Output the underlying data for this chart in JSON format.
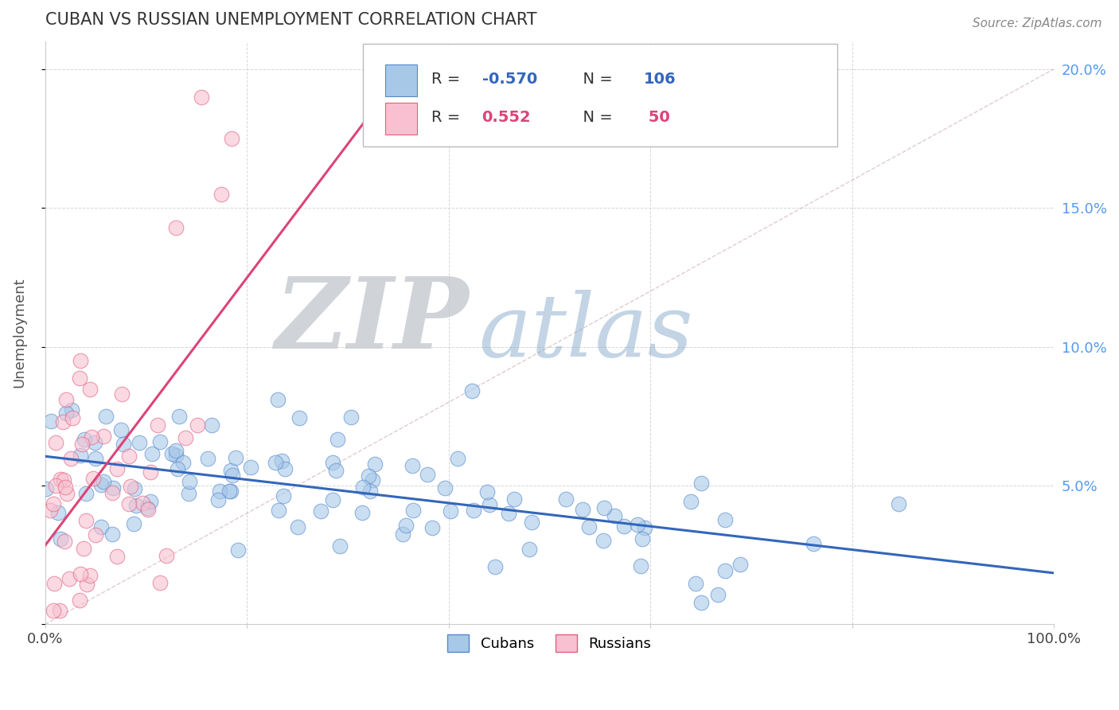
{
  "title": "CUBAN VS RUSSIAN UNEMPLOYMENT CORRELATION CHART",
  "source_text": "Source: ZipAtlas.com",
  "ylabel": "Unemployment",
  "xlim": [
    0,
    1
  ],
  "ylim": [
    0,
    0.21
  ],
  "xticks": [
    0.0,
    0.2,
    0.4,
    0.6,
    0.8,
    1.0
  ],
  "xticklabels": [
    "0.0%",
    "",
    "",
    "",
    "",
    "100.0%"
  ],
  "yticks": [
    0.0,
    0.05,
    0.1,
    0.15,
    0.2
  ],
  "yticklabels_right": [
    "",
    "5.0%",
    "10.0%",
    "15.0%",
    "20.0%"
  ],
  "cuban_R": -0.57,
  "cuban_N": 106,
  "russian_R": 0.552,
  "russian_N": 50,
  "cuban_color": "#a8c8e8",
  "russian_color": "#f8c0d0",
  "cuban_edge_color": "#5588cc",
  "russian_edge_color": "#e06080",
  "cuban_line_color": "#3366bb",
  "russian_line_color": "#dd4477",
  "ref_line_color": "#ccaaaa",
  "watermark_zip_color": "#c8d0d8",
  "watermark_atlas_color": "#88aacc",
  "background_color": "#ffffff",
  "grid_color": "#cccccc",
  "title_color": "#333333",
  "right_tick_color": "#5599ee"
}
